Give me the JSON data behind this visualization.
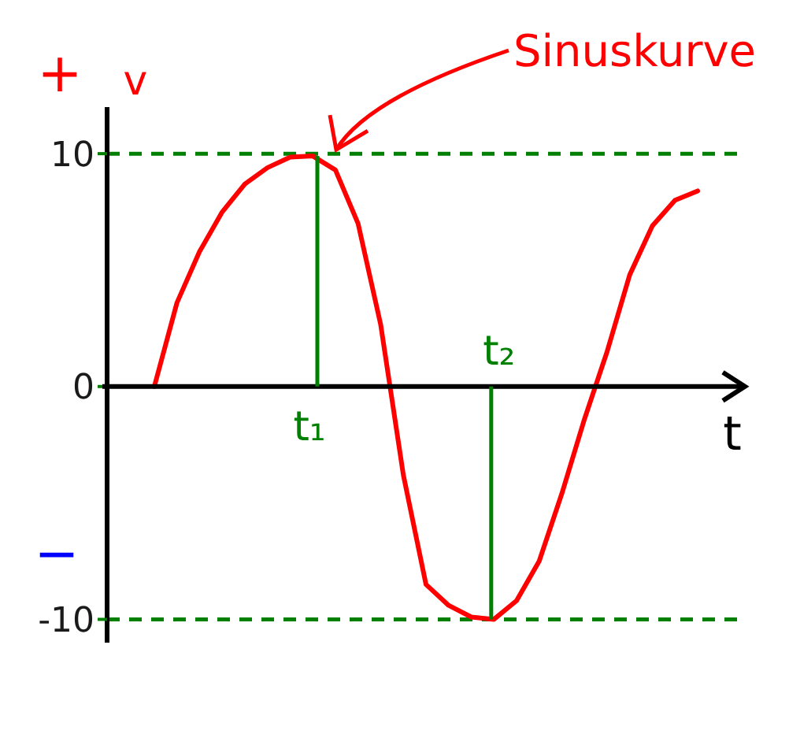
{
  "chart_data": {
    "type": "line",
    "xlabel": "t",
    "ylabel": "v",
    "categories": [
      null,
      null,
      null,
      null,
      null,
      null,
      null,
      null,
      null,
      null,
      null,
      null,
      null,
      null,
      null,
      null,
      null,
      null,
      null,
      null,
      null,
      null,
      null,
      null,
      null
    ],
    "series": [
      {
        "color": "#ff0000",
        "values": [
          0,
          3.6,
          5.8,
          7.5,
          8.7,
          9.4,
          9.85,
          9.9,
          9.3,
          7,
          2.65,
          -3.8,
          -8.5,
          -9.4,
          -9.9,
          -10,
          -9.2,
          -7.5,
          -4.6,
          -1.4,
          1.5,
          4.8,
          6.9,
          8,
          8.4
        ]
      }
    ],
    "ylim": [
      -11,
      12
    ],
    "yticks": [
      10,
      0,
      {
        "value": -10,
        "label": "-10"
      }
    ],
    "marker": "none",
    "line_style": "solid",
    "ref_lines": [
      {
        "axis": "y",
        "value": 10,
        "color": "#008000",
        "line_style": "dashed"
      },
      {
        "axis": "y",
        "value": -10,
        "color": "#008000",
        "line_style": "dashed"
      }
    ],
    "annotations": [
      "Sinuskurve",
      "+",
      "−",
      "t₁",
      "t₂"
    ]
  }
}
